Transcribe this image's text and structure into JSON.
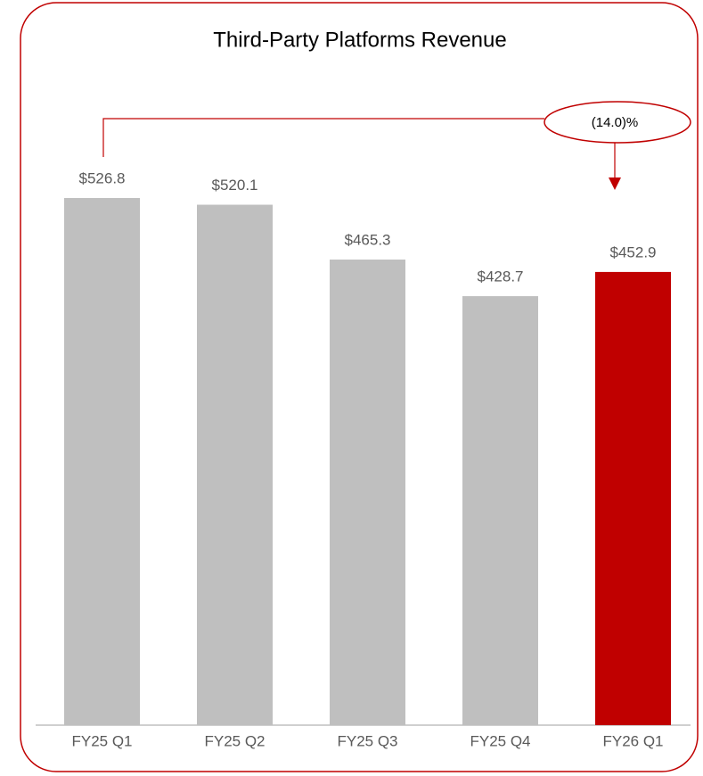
{
  "chart_data": {
    "type": "bar",
    "title": "Third-Party Platforms Revenue",
    "categories": [
      "FY25 Q1",
      "FY25 Q2",
      "FY25 Q3",
      "FY25 Q4",
      "FY26 Q1"
    ],
    "values": [
      526.8,
      520.1,
      465.3,
      428.7,
      452.9
    ],
    "value_labels": [
      "$526.8",
      "$520.1",
      "$465.3",
      "$428.7",
      "$452.9"
    ],
    "colors": [
      "#bfbfbf",
      "#bfbfbf",
      "#bfbfbf",
      "#bfbfbf",
      "#c00000"
    ],
    "annotation": "(14.0)%"
  }
}
